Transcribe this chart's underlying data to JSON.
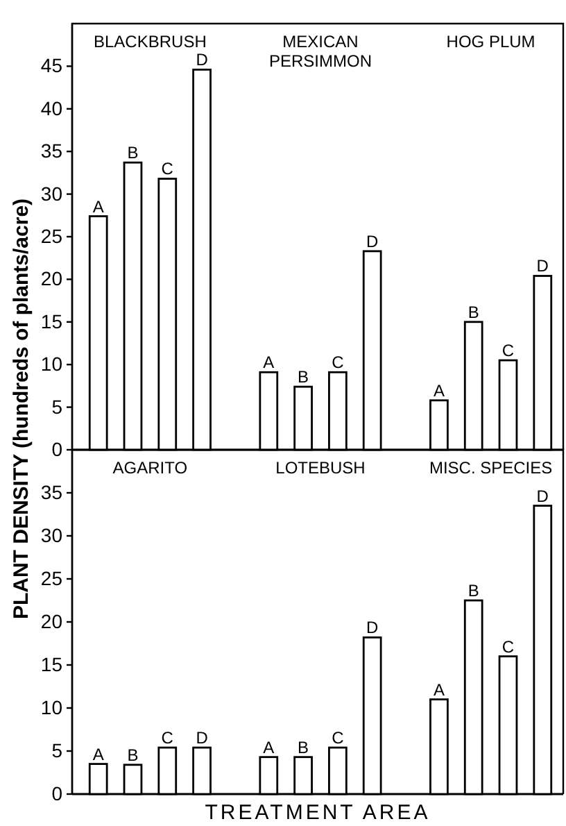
{
  "chart_data": [
    {
      "type": "bar",
      "ylabel": "PLANT DENSITY (hundreds of plants/acre)",
      "categories": [
        "BLACKBRUSH",
        "MEXICAN PERSIMMON",
        "HOG PLUM"
      ],
      "series": [
        {
          "name": "A",
          "color": "#ffffff",
          "values": [
            27.4,
            9.1,
            5.8
          ]
        },
        {
          "name": "B",
          "color": "#ffffff",
          "values": [
            33.7,
            7.4,
            15.0
          ]
        },
        {
          "name": "C",
          "color": "#ffffff",
          "values": [
            31.8,
            9.1,
            10.5
          ]
        },
        {
          "name": "D",
          "color": "#ffffff",
          "values": [
            44.6,
            23.3,
            20.4
          ]
        }
      ],
      "ylim": [
        0,
        50
      ],
      "yticks": [
        0,
        5,
        10,
        15,
        20,
        25,
        30,
        35,
        40,
        45
      ],
      "grid": false
    },
    {
      "type": "bar",
      "xlabel": "TREATMENT AREA",
      "categories": [
        "AGARITO",
        "LOTEBUSH",
        "MISC. SPECIES"
      ],
      "series": [
        {
          "name": "A",
          "color": "#ffffff",
          "values": [
            3.5,
            4.3,
            11.0
          ]
        },
        {
          "name": "B",
          "color": "#ffffff",
          "values": [
            3.4,
            4.3,
            22.5
          ]
        },
        {
          "name": "C",
          "color": "#ffffff",
          "values": [
            5.4,
            5.4,
            16.0
          ]
        },
        {
          "name": "D",
          "color": "#ffffff",
          "values": [
            5.4,
            18.2,
            33.5
          ]
        }
      ],
      "ylim": [
        0,
        40
      ],
      "yticks": [
        0,
        5,
        10,
        15,
        20,
        25,
        30,
        35
      ],
      "grid": false
    }
  ]
}
